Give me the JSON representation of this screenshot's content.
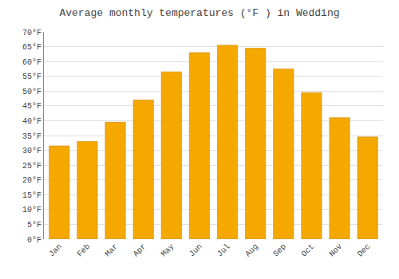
{
  "chart_data": {
    "type": "bar",
    "title": "Average monthly temperatures (°F ) in Wedding",
    "categories": [
      "Jan",
      "Feb",
      "Mar",
      "Apr",
      "May",
      "Jun",
      "Jul",
      "Aug",
      "Sep",
      "Oct",
      "Nov",
      "Dec"
    ],
    "values": [
      31.5,
      33.0,
      39.5,
      47.0,
      56.5,
      63.0,
      65.5,
      64.5,
      57.5,
      49.5,
      41.0,
      34.5
    ],
    "color": "#F5A800",
    "ylim": [
      0,
      70
    ],
    "yticks": [
      {
        "value": 0,
        "label": "0°F"
      },
      {
        "value": 5,
        "label": "5°F"
      },
      {
        "value": 10,
        "label": "10°F"
      },
      {
        "value": 15,
        "label": "15°F"
      },
      {
        "value": 20,
        "label": "20°F"
      },
      {
        "value": 25,
        "label": "25°F"
      },
      {
        "value": 30,
        "label": "30°F"
      },
      {
        "value": 35,
        "label": "35°F"
      },
      {
        "value": 40,
        "label": "40°F"
      },
      {
        "value": 45,
        "label": "45°F"
      },
      {
        "value": 50,
        "label": "50°F"
      },
      {
        "value": 55,
        "label": "55°F"
      },
      {
        "value": 60,
        "label": "60°F"
      },
      {
        "value": 65,
        "label": "65°F"
      },
      {
        "value": 70,
        "label": "70°F"
      }
    ],
    "grid": true
  }
}
